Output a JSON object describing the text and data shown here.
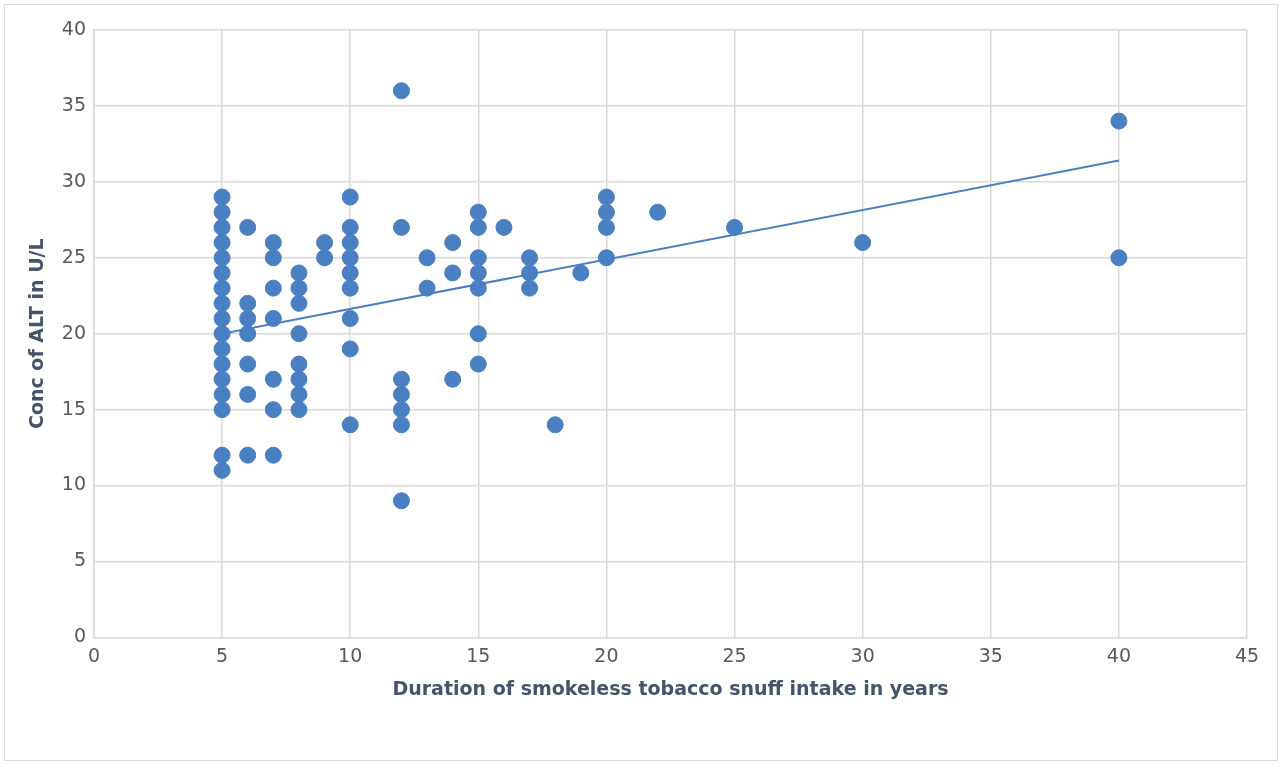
{
  "chart_data": {
    "type": "scatter",
    "xlabel": "Duration of smokeless tobacco snuff intake in years",
    "ylabel": "Conc of ALT in U/L",
    "xlim": [
      0,
      45
    ],
    "xticks": [
      0,
      5,
      10,
      15,
      20,
      25,
      30,
      35,
      40,
      45
    ],
    "ylim": [
      0,
      40
    ],
    "yticks": [
      0,
      5,
      10,
      15,
      20,
      25,
      30,
      35,
      40
    ],
    "grid": true,
    "legend": false,
    "marker": "circle",
    "series": [
      {
        "type": "scatter",
        "color": "#4a7fc1",
        "x": [
          5,
          5,
          5,
          5,
          5,
          5,
          5,
          5,
          5,
          5,
          5,
          5,
          5,
          5,
          5,
          5,
          5,
          6,
          6,
          6,
          6,
          6,
          6,
          6,
          7,
          7,
          7,
          7,
          7,
          7,
          7,
          8,
          8,
          8,
          8,
          8,
          8,
          8,
          8,
          9,
          9,
          10,
          10,
          10,
          10,
          10,
          10,
          10,
          10,
          10,
          12,
          12,
          12,
          12,
          12,
          12,
          12,
          13,
          13,
          14,
          14,
          14,
          15,
          15,
          15,
          15,
          15,
          15,
          15,
          16,
          17,
          17,
          17,
          18,
          19,
          20,
          20,
          20,
          20,
          22,
          25,
          30,
          40,
          40
        ],
        "values": [
          29,
          28,
          27,
          26,
          25,
          24,
          23,
          22,
          21,
          20,
          19,
          18,
          17,
          16,
          15,
          12,
          11,
          27,
          22,
          21,
          20,
          18,
          16,
          12,
          26,
          25,
          23,
          21,
          17,
          15,
          12,
          24,
          23,
          22,
          20,
          18,
          17,
          16,
          15,
          26,
          25,
          29,
          27,
          26,
          25,
          24,
          23,
          21,
          19,
          14,
          36,
          27,
          17,
          16,
          15,
          14,
          9,
          25,
          23,
          26,
          24,
          17,
          28,
          27,
          25,
          24,
          23,
          20,
          18,
          27,
          25,
          24,
          23,
          14,
          24,
          29,
          28,
          27,
          25,
          28,
          27,
          26,
          34,
          25
        ]
      },
      {
        "type": "line",
        "color": "#4a7fc1",
        "marker": "none",
        "line_style": "solid",
        "x": [
          5,
          40
        ],
        "values": [
          20,
          31.4
        ]
      }
    ]
  }
}
